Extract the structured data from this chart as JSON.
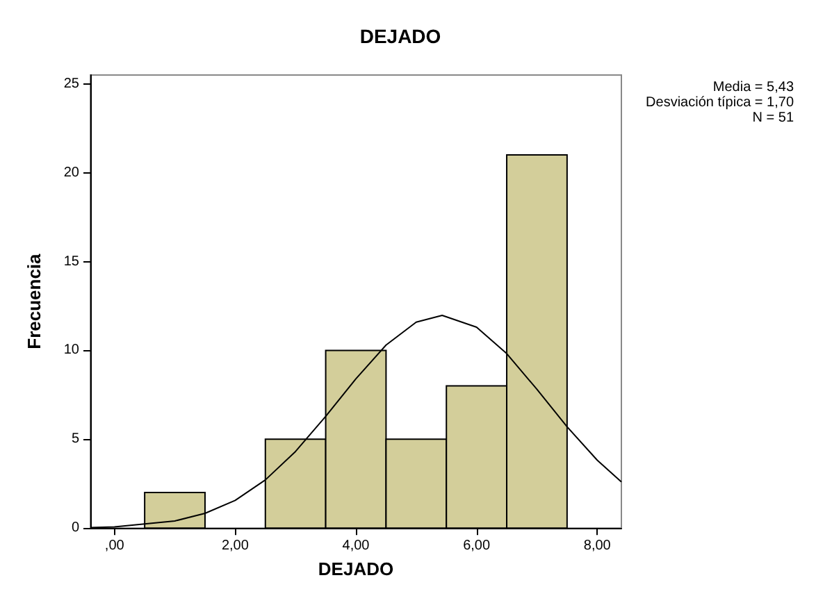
{
  "chart_data": {
    "type": "histogram",
    "title": "DEJADO",
    "xlabel": "DEJADO",
    "ylabel": "Frecuencia",
    "bins": [
      0.5,
      1.5,
      2.5,
      3.5,
      4.5,
      5.5,
      6.5,
      7.5
    ],
    "values": [
      2,
      0,
      5,
      10,
      5,
      8,
      21
    ],
    "color": "#d3ce9a",
    "series": [
      {
        "type": "line",
        "color": "#000000",
        "x": [
          -0.4,
          0,
          1,
          1.5,
          2,
          2.5,
          3,
          3.5,
          4,
          4.5,
          5,
          5.43,
          6,
          6.5,
          7,
          7.5,
          8,
          8.4
        ],
        "values": [
          0.03,
          0.07,
          0.4,
          0.83,
          1.56,
          2.71,
          4.31,
          6.29,
          8.4,
          10.3,
          11.59,
          11.97,
          11.31,
          9.82,
          7.81,
          5.7,
          3.82,
          2.6
        ]
      }
    ],
    "xlim": [
      -0.4,
      8.4
    ],
    "xticks": [
      {
        "value": 0,
        "label": ",00"
      },
      {
        "value": 2,
        "label": "2,00"
      },
      {
        "value": 4,
        "label": "4,00"
      },
      {
        "value": 6,
        "label": "6,00"
      },
      {
        "value": 8,
        "label": "8,00"
      }
    ],
    "ylim": [
      0,
      25.5
    ],
    "yticks": [
      0,
      5,
      10,
      15,
      20,
      25
    ],
    "grid": false,
    "annotations": [
      "Media = 5,43",
      "Desviación típica = 1,70",
      "N = 51"
    ]
  }
}
